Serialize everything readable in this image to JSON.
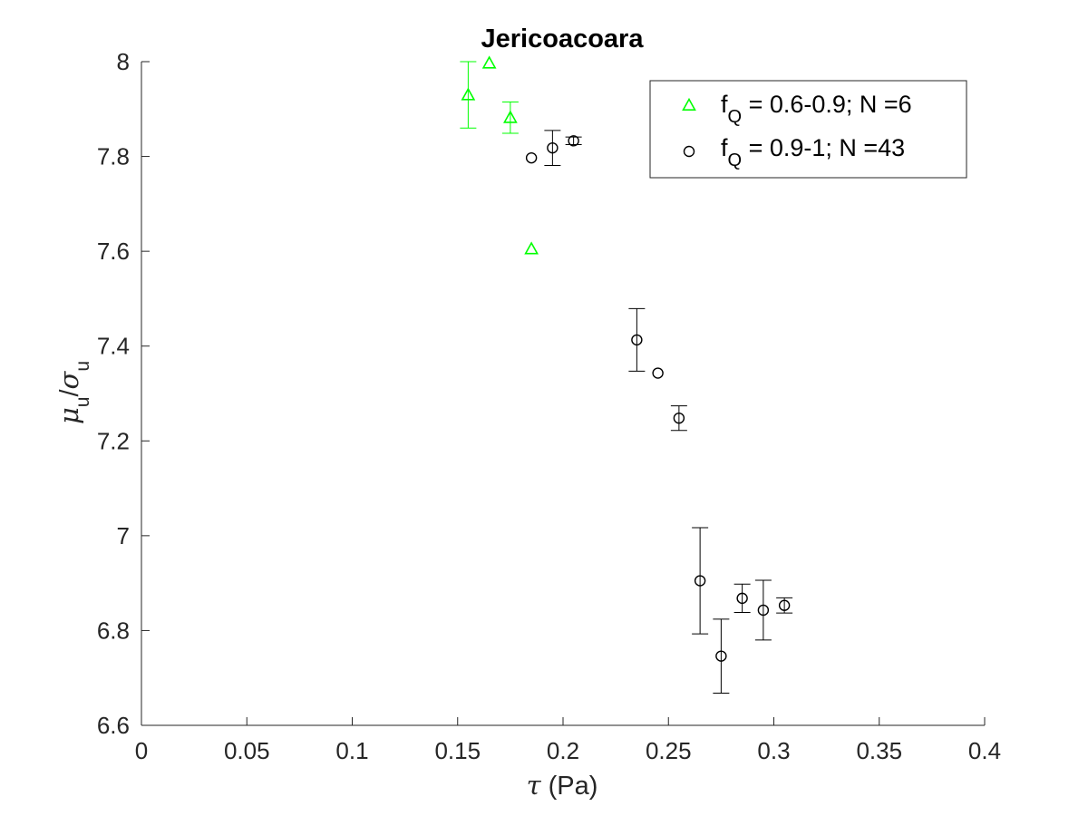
{
  "chart_data": {
    "type": "scatter",
    "title": "Jericoacoara",
    "xlabel_symbol": "τ",
    "xlabel_unit": "(Pa)",
    "ylabel": {
      "mu": "μ",
      "mu_sub": "u",
      "slash": "/",
      "sigma": "σ",
      "sigma_sub": "u"
    },
    "xlim": [
      0,
      0.4
    ],
    "ylim": [
      6.6,
      8.0
    ],
    "xticks": [
      0,
      0.05,
      0.1,
      0.15,
      0.2,
      0.25,
      0.3,
      0.35,
      0.4
    ],
    "xtick_labels": [
      "0",
      "0.05",
      "0.1",
      "0.15",
      "0.2",
      "0.25",
      "0.3",
      "0.35",
      "0.4"
    ],
    "yticks": [
      6.6,
      6.8,
      7.0,
      7.2,
      7.4,
      7.6,
      7.8,
      8.0
    ],
    "ytick_labels": [
      "6.6",
      "6.8",
      "7",
      "7.2",
      "7.4",
      "7.6",
      "7.8",
      "8"
    ],
    "grid": false,
    "legend_position": "top-right",
    "series": [
      {
        "name": "f_Q = 0.6-0.9; N =6",
        "legend_f": "f",
        "legend_sub": "Q",
        "legend_rest": " = 0.6-0.9; N =6",
        "marker": "triangle",
        "color": "#00ff00",
        "points": [
          {
            "x": 0.155,
            "y": 7.93,
            "err": 0.07
          },
          {
            "x": 0.165,
            "y": 7.997,
            "err": 0
          },
          {
            "x": 0.175,
            "y": 7.882,
            "err": 0.033
          },
          {
            "x": 0.185,
            "y": 7.605,
            "err": 0
          }
        ]
      },
      {
        "name": "f_Q = 0.9-1; N =43",
        "legend_f": "f",
        "legend_sub": "Q",
        "legend_rest": " = 0.9-1; N =43",
        "marker": "circle",
        "color": "#000000",
        "points": [
          {
            "x": 0.185,
            "y": 7.797,
            "err": 0
          },
          {
            "x": 0.195,
            "y": 7.818,
            "err": 0.037
          },
          {
            "x": 0.205,
            "y": 7.833,
            "err": 0.008
          },
          {
            "x": 0.235,
            "y": 7.413,
            "err": 0.066
          },
          {
            "x": 0.245,
            "y": 7.343,
            "err": 0
          },
          {
            "x": 0.255,
            "y": 7.248,
            "err": 0.026
          },
          {
            "x": 0.265,
            "y": 6.905,
            "err": 0.112
          },
          {
            "x": 0.275,
            "y": 6.746,
            "err": 0.078
          },
          {
            "x": 0.285,
            "y": 6.868,
            "err": 0.03
          },
          {
            "x": 0.295,
            "y": 6.843,
            "err": 0.063
          },
          {
            "x": 0.305,
            "y": 6.853,
            "err": 0.016
          }
        ]
      }
    ]
  }
}
